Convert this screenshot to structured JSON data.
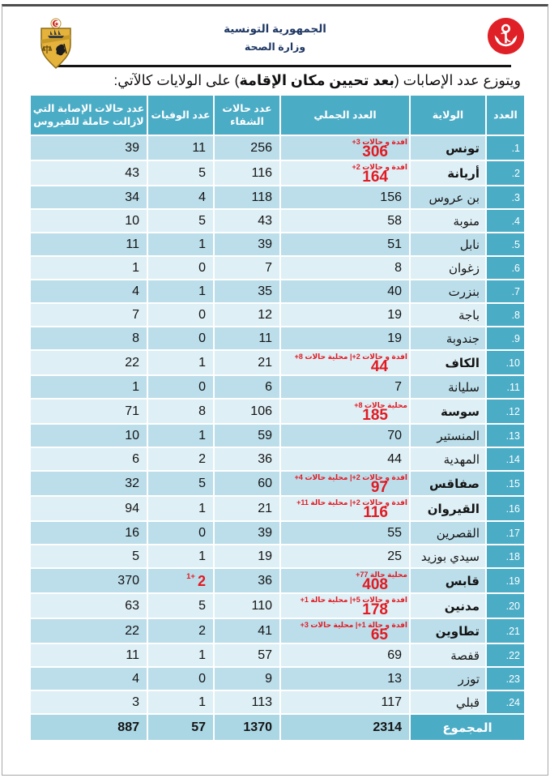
{
  "colors": {
    "teal": "#4bacc6",
    "band_dark": "#bcdeea",
    "band_light": "#deeff5",
    "total_band": "#abd6e4",
    "red": "#e21a22",
    "navy": "#1f3864"
  },
  "header": {
    "org_line1": "الجمهورية التونسية",
    "org_line2": "وزارة الصحة",
    "emblem_icon": "tunisia-coat-of-arms",
    "logo_icon": "ministry-of-health-logo"
  },
  "title": {
    "pre": "ويتوزع عدد الإصابات (",
    "bold": "بعد تحيين مكان الإقامة",
    "post": ") على الولايات كالآتي:"
  },
  "table": {
    "headers": {
      "num": "العدد",
      "name": "الولاية",
      "total": "العدد الجملي",
      "recovered": "عدد حالات الشفاء",
      "deaths": "عدد الوفيات",
      "active": "عدد حالات الإصابة التي لازالت حاملة للفيروس"
    },
    "rows": [
      {
        "num": ".1",
        "name": "تونس",
        "bold": true,
        "total": "306",
        "annotation": "+3 حالات و افدة",
        "recovered": "256",
        "deaths": "11",
        "active": "39"
      },
      {
        "num": ".2",
        "name": "أريانة",
        "bold": true,
        "total": "164",
        "annotation": "+2 حالات و افدة",
        "recovered": "116",
        "deaths": "5",
        "active": "43"
      },
      {
        "num": ".3",
        "name": "بن عروس",
        "bold": false,
        "total": "156",
        "annotation": "",
        "recovered": "118",
        "deaths": "4",
        "active": "34"
      },
      {
        "num": ".4",
        "name": "منوبة",
        "bold": false,
        "total": "58",
        "annotation": "",
        "recovered": "43",
        "deaths": "5",
        "active": "10"
      },
      {
        "num": ".5",
        "name": "نابل",
        "bold": false,
        "total": "51",
        "annotation": "",
        "recovered": "39",
        "deaths": "1",
        "active": "11"
      },
      {
        "num": ".6",
        "name": "زغوان",
        "bold": false,
        "total": "8",
        "annotation": "",
        "recovered": "7",
        "deaths": "0",
        "active": "1"
      },
      {
        "num": ".7",
        "name": "بنزرت",
        "bold": false,
        "total": "40",
        "annotation": "",
        "recovered": "35",
        "deaths": "1",
        "active": "4"
      },
      {
        "num": ".8",
        "name": "باجة",
        "bold": false,
        "total": "19",
        "annotation": "",
        "recovered": "12",
        "deaths": "0",
        "active": "7"
      },
      {
        "num": ".9",
        "name": "جندوبة",
        "bold": false,
        "total": "19",
        "annotation": "",
        "recovered": "11",
        "deaths": "0",
        "active": "8"
      },
      {
        "num": ".10",
        "name": "الكاف",
        "bold": true,
        "total": "44",
        "annotation": "+8 حالات محلية |+2 حالات و افدة",
        "recovered": "21",
        "deaths": "1",
        "active": "22"
      },
      {
        "num": ".11",
        "name": "سليانة",
        "bold": false,
        "total": "7",
        "annotation": "",
        "recovered": "6",
        "deaths": "0",
        "active": "1"
      },
      {
        "num": ".12",
        "name": "سوسة",
        "bold": true,
        "total": "185",
        "annotation": "+8 حالات محلية",
        "recovered": "106",
        "deaths": "8",
        "active": "71"
      },
      {
        "num": ".13",
        "name": "المنستير",
        "bold": false,
        "total": "70",
        "annotation": "",
        "recovered": "59",
        "deaths": "1",
        "active": "10"
      },
      {
        "num": ".14",
        "name": "المهدية",
        "bold": false,
        "total": "44",
        "annotation": "",
        "recovered": "36",
        "deaths": "2",
        "active": "6"
      },
      {
        "num": ".15",
        "name": "صفاقس",
        "bold": true,
        "total": "97",
        "annotation": "+4 حالات محلية |+2 حالات و افدة",
        "recovered": "60",
        "deaths": "5",
        "active": "32"
      },
      {
        "num": ".16",
        "name": "القيروان",
        "bold": true,
        "total": "116",
        "annotation": "+11 حالة محلية |+2 حالات و افدة",
        "recovered": "21",
        "deaths": "1",
        "active": "94"
      },
      {
        "num": ".17",
        "name": "القصرين",
        "bold": false,
        "total": "55",
        "annotation": "",
        "recovered": "39",
        "deaths": "0",
        "active": "16"
      },
      {
        "num": ".18",
        "name": "سيدي بوزيد",
        "bold": false,
        "total": "25",
        "annotation": "",
        "recovered": "19",
        "deaths": "1",
        "active": "5"
      },
      {
        "num": ".19",
        "name": "قابس",
        "bold": true,
        "total": "408",
        "annotation": "+77 حالة محلية",
        "recovered": "36",
        "deaths": "2",
        "deaths_sup": "1+",
        "active": "370"
      },
      {
        "num": ".20",
        "name": "مدنين",
        "bold": true,
        "total": "178",
        "annotation": "+1 حالة محلية |+5 حالات و افدة",
        "recovered": "110",
        "deaths": "5",
        "active": "63"
      },
      {
        "num": ".21",
        "name": "تطاوين",
        "bold": true,
        "total": "65",
        "annotation": "+3 حالات محلية |+1 حالة و افدة",
        "recovered": "41",
        "deaths": "2",
        "active": "22"
      },
      {
        "num": ".22",
        "name": "قفصة",
        "bold": false,
        "total": "69",
        "annotation": "",
        "recovered": "57",
        "deaths": "1",
        "active": "11"
      },
      {
        "num": ".23",
        "name": "توزر",
        "bold": false,
        "total": "13",
        "annotation": "",
        "recovered": "9",
        "deaths": "0",
        "active": "4"
      },
      {
        "num": ".24",
        "name": "قبلي",
        "bold": false,
        "total": "117",
        "annotation": "",
        "recovered": "113",
        "deaths": "1",
        "active": "3"
      }
    ],
    "total": {
      "label": "المجموع",
      "total": "2314",
      "recovered": "1370",
      "deaths": "57",
      "active": "887"
    }
  }
}
